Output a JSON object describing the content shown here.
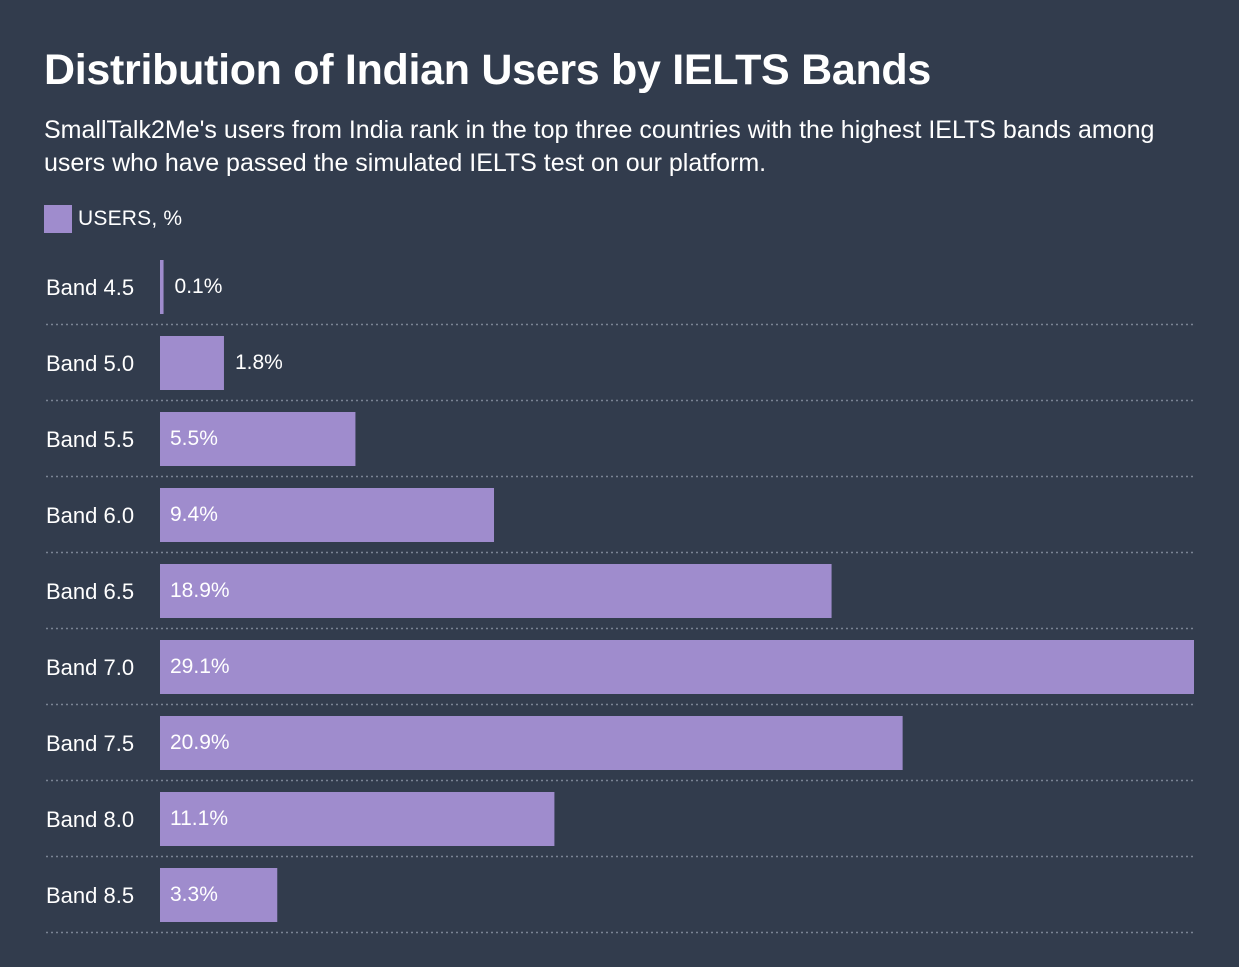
{
  "chart_data": {
    "type": "bar",
    "orientation": "horizontal",
    "title": "Distribution of Indian Users by IELTS Bands",
    "subtitle": "SmallTalk2Me's users from India rank in the top three countries with the highest IELTS bands among users who have passed the simulated IELTS test on our platform.",
    "legend": [
      {
        "label": "USERS, %",
        "color": "#9f8ccd"
      }
    ],
    "series": [
      {
        "name": "USERS, %",
        "color": "#9f8ccd",
        "values": [
          0.1,
          1.8,
          5.5,
          9.4,
          18.9,
          29.1,
          20.9,
          11.1,
          3.3
        ]
      }
    ],
    "categories": [
      "Band 4.5",
      "Band 5.0",
      "Band 5.5",
      "Band 6.0",
      "Band 6.5",
      "Band 7.0",
      "Band 7.5",
      "Band 8.0",
      "Band 8.5"
    ],
    "data_labels": [
      "0.1%",
      "1.8%",
      "5.5%",
      "9.4%",
      "18.9%",
      "29.1%",
      "20.9%",
      "11.1%",
      "3.3%"
    ],
    "xlim": [
      0,
      29.1
    ],
    "xlabel": "",
    "ylabel": "",
    "grid": false
  }
}
